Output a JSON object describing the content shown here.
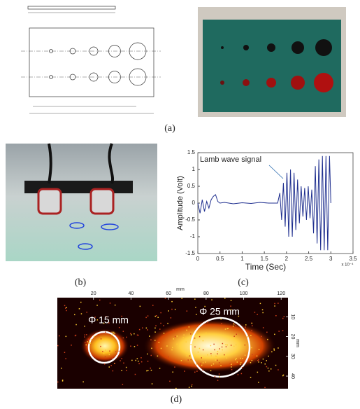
{
  "panel_labels": [
    "(a)",
    "(b)",
    "(c)",
    "(d)"
  ],
  "chart_data": [
    {
      "type": "line",
      "xlabel": "Time (Sec)",
      "ylabel": "Amplitude (Volt)",
      "annotation": "Lamb wave signal",
      "x_multiplier": "x 10⁻⁴",
      "x": [
        0,
        0.05,
        0.1,
        0.15,
        0.2,
        0.25,
        0.3,
        0.35,
        0.4,
        0.45,
        0.5,
        0.6,
        0.8,
        1.0,
        1.2,
        1.4,
        1.6,
        1.8,
        1.85,
        1.89,
        1.93,
        1.97,
        2.01,
        2.05,
        2.09,
        2.13,
        2.17,
        2.21,
        2.25,
        2.29,
        2.33,
        2.37,
        2.41,
        2.45,
        2.49,
        2.53,
        2.57,
        2.61,
        2.65,
        2.69,
        2.73,
        2.77,
        2.81,
        2.85,
        2.89,
        2.93,
        2.97,
        3.0
      ],
      "series": [
        {
          "color": "#1f2f8f",
          "values": [
            0,
            -0.3,
            0.1,
            -0.25,
            0.05,
            -0.15,
            0.1,
            0.2,
            0.25,
            0.05,
            0,
            0.02,
            -0.02,
            0.01,
            -0.01,
            0.02,
            0,
            0,
            0.3,
            -0.5,
            0.6,
            -0.7,
            0.9,
            -1.0,
            1.0,
            -1.0,
            0.9,
            -0.8,
            0.7,
            -0.6,
            0.5,
            -0.4,
            0.45,
            -0.5,
            0.5,
            -0.45,
            0.4,
            -0.9,
            1.1,
            -1.2,
            1.3,
            -1.4,
            1.4,
            -1.4,
            1.4,
            -1.4,
            1.4,
            0
          ]
        }
      ],
      "xlim": [
        0,
        3.5
      ],
      "xticks": [
        0,
        0.5,
        1,
        1.5,
        2,
        2.5,
        3,
        3.5
      ],
      "ylim": [
        -1.5,
        1.5
      ],
      "yticks": [
        -1.5,
        -1,
        -0.5,
        0,
        0.5,
        1,
        1.5
      ]
    },
    {
      "type": "image",
      "xlabel": "mm",
      "ylabel": "mm",
      "annotations": [
        "Φ 15 mm",
        "Φ 25 mm"
      ],
      "xlim": [
        0,
        124
      ],
      "xticks": [
        20,
        40,
        60,
        80,
        100,
        120
      ],
      "ylim": [
        0,
        46
      ],
      "yticks": [
        10,
        20,
        30,
        40
      ]
    }
  ]
}
